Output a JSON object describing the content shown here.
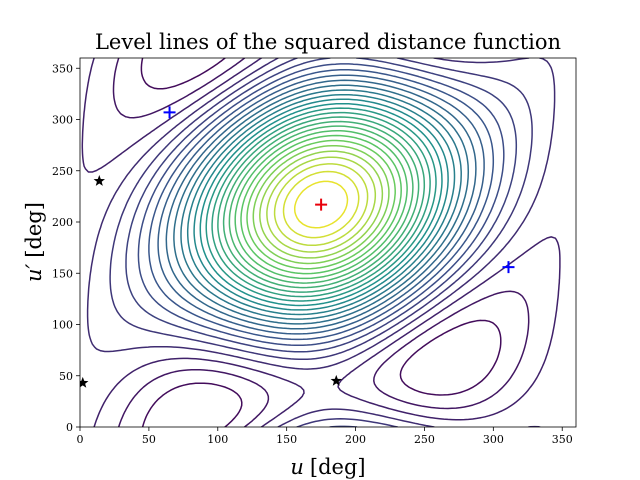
{
  "chart_data": {
    "type": "contour",
    "title": "Level lines of the squared distance function",
    "xlabel_var": "u",
    "xlabel_unit": "[deg]",
    "ylabel_var": "u′",
    "ylabel_unit": "[deg]",
    "xlim": [
      0,
      360
    ],
    "ylim": [
      0,
      360
    ],
    "xticks": [
      0,
      50,
      100,
      150,
      200,
      250,
      300,
      350
    ],
    "yticks": [
      0,
      50,
      100,
      150,
      200,
      250,
      300,
      350
    ],
    "grid": false,
    "colormap": [
      "#440154",
      "#3b528b",
      "#21918c",
      "#5ec962",
      "#fde725"
    ],
    "maximum_marker": {
      "x": 175,
      "y": 217,
      "symbol": "plus",
      "color": "#e8000b"
    },
    "saddle_markers": [
      {
        "x": 65,
        "y": 307,
        "symbol": "plus",
        "color": "#0000ff"
      },
      {
        "x": 311,
        "y": 156,
        "symbol": "plus",
        "color": "#0000ff"
      }
    ],
    "minimum_markers": [
      {
        "x": 14,
        "y": 240,
        "symbol": "star",
        "color": "#000000"
      },
      {
        "x": 2,
        "y": 43,
        "symbol": "star",
        "color": "#000000"
      },
      {
        "x": 186,
        "y": 45,
        "symbol": "star",
        "color": "#000000"
      }
    ]
  }
}
